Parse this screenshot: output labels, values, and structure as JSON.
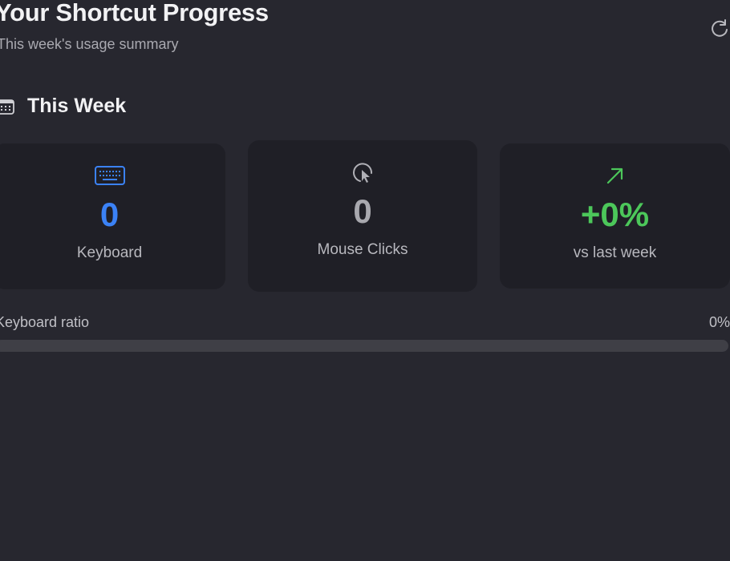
{
  "header": {
    "title": "Your Shortcut Progress",
    "subtitle": "This week's usage summary",
    "refresh_icon": "arrow-clockwise-icon"
  },
  "section": {
    "title": "This Week",
    "icon": "calendar-icon"
  },
  "cards": [
    {
      "value": "0",
      "label": "Keyboard",
      "icon": "keyboard-icon",
      "color": "#3b82f6"
    },
    {
      "value": "0",
      "label": "Mouse Clicks",
      "icon": "cursor-click-icon",
      "color": "#a8a8ae"
    },
    {
      "value": "+0%",
      "label": "vs last week",
      "icon": "arrow-up-right-icon",
      "color": "#4cc75a"
    }
  ],
  "ratio": {
    "label": "Keyboard ratio",
    "value_text": "0%",
    "fraction": 0
  }
}
